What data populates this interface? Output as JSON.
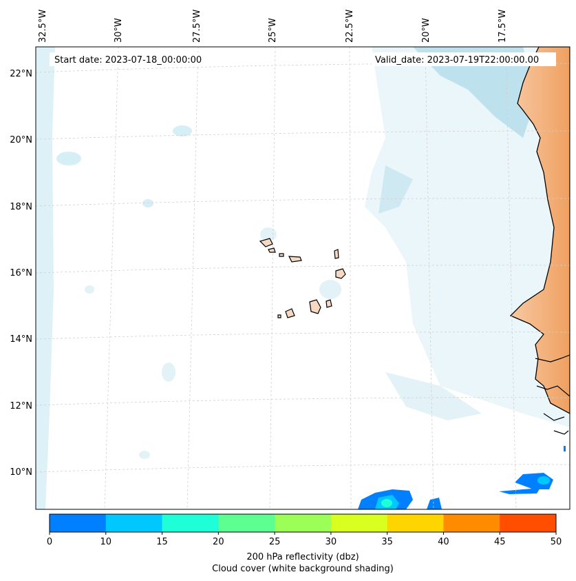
{
  "map": {
    "start_date": "Start date: 2023-07-18_00:00:00",
    "valid_date": "Valid_date: 2023-07-19T22:00:00.00",
    "lon_labels": [
      "32.5°W",
      "30°W",
      "27.5°W",
      "25°W",
      "22.5°W",
      "20°W",
      "17.5°W"
    ],
    "lat_labels": [
      "22°N",
      "20°N",
      "18°N",
      "16°N",
      "14°N",
      "12°N",
      "10°N"
    ]
  },
  "colorbar": {
    "ticks": [
      "0",
      "10",
      "15",
      "20",
      "25",
      "30",
      "35",
      "40",
      "45",
      "50"
    ],
    "colors": [
      "#0080ff",
      "#00c8ff",
      "#1effd8",
      "#5cff90",
      "#9cff58",
      "#d8ff20",
      "#ffd500",
      "#ff8c00",
      "#ff4e00"
    ],
    "label1": "200 hPa reflectivity (dbz)",
    "label2": "Cloud cover (white background shading)"
  }
}
